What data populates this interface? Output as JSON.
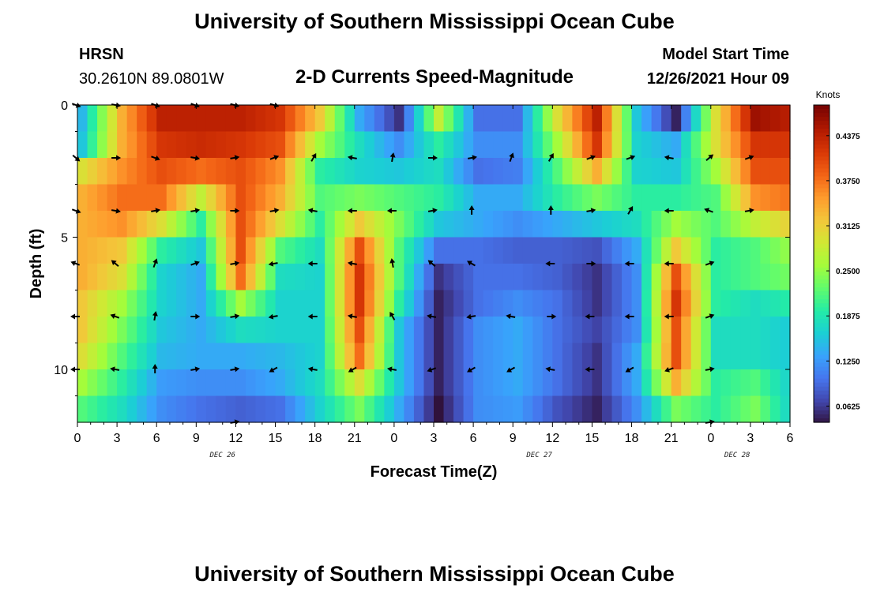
{
  "header": {
    "title": "University of Southern Mississippi Ocean Cube",
    "station": "HRSN",
    "coords": "30.2610N  89.0801W",
    "subtitle": "2-D Currents Speed-Magnitude",
    "model_label": "Model Start Time",
    "model_time": "12/26/2021 Hour 09",
    "footer_title": "University of Southern Mississippi Ocean Cube"
  },
  "colors": {
    "colormap": [
      "#30123b",
      "#4145ab",
      "#4675ed",
      "#39a2fc",
      "#1bcfd4",
      "#24eca6",
      "#61fc6c",
      "#a4fc3b",
      "#d1e834",
      "#f3c63a",
      "#fe9b2d",
      "#f36315",
      "#d93806",
      "#b11901",
      "#7a0402"
    ],
    "arrow": "#000000",
    "frame": "#000000"
  },
  "chart_data": {
    "type": "heatmap",
    "title": "2-D Currents Speed-Magnitude",
    "xlabel": "Forecast Time(Z)",
    "ylabel": "Depth (ft)",
    "x_range_hours": [
      0,
      54
    ],
    "y_range_ft": [
      0,
      12
    ],
    "x_tick_labels": [
      "0",
      "3",
      "6",
      "9",
      "12",
      "15",
      "18",
      "21",
      "0",
      "3",
      "6",
      "9",
      "12",
      "15",
      "18",
      "21",
      "0",
      "3",
      "6"
    ],
    "y_ticks": [
      0,
      5,
      10
    ],
    "day_labels": [
      {
        "label": "DEC 26",
        "hour": 11
      },
      {
        "label": "DEC 27",
        "hour": 35
      },
      {
        "label": "DEC 28",
        "hour": 50
      }
    ],
    "colorbar": {
      "unit": "Knots",
      "min": 0.04,
      "max": 0.48,
      "ticks": [
        0.0625,
        0.125,
        0.1875,
        0.25,
        0.3125,
        0.375,
        0.4375
      ],
      "tick_labels": [
        "0.0625",
        "0.1250",
        "0.1875",
        "0.2500",
        "0.3125",
        "0.3750",
        "0.4375"
      ]
    },
    "depth_rows_ft": [
      0.5,
      1.5,
      2.5,
      3.5,
      4.5,
      5.5,
      6.5,
      7.5,
      8.5,
      9.5,
      10.5,
      11.5
    ],
    "column_hours": [
      0,
      3,
      6,
      9,
      12,
      15,
      18,
      21,
      24,
      27,
      30,
      33,
      36,
      39,
      42,
      45,
      48,
      51,
      54
    ],
    "speed_knots": [
      [
        0.15,
        0.34,
        0.44,
        0.44,
        0.44,
        0.42,
        0.32,
        0.14,
        0.06,
        0.28,
        0.1,
        0.1,
        0.3,
        0.44,
        0.16,
        0.05,
        0.3,
        0.46,
        0.44
      ],
      [
        0.16,
        0.34,
        0.42,
        0.43,
        0.42,
        0.4,
        0.26,
        0.18,
        0.12,
        0.2,
        0.12,
        0.12,
        0.26,
        0.42,
        0.17,
        0.14,
        0.3,
        0.42,
        0.42
      ],
      [
        0.3,
        0.36,
        0.4,
        0.38,
        0.4,
        0.36,
        0.2,
        0.17,
        0.16,
        0.18,
        0.1,
        0.11,
        0.22,
        0.34,
        0.17,
        0.16,
        0.26,
        0.4,
        0.4
      ],
      [
        0.34,
        0.38,
        0.38,
        0.28,
        0.4,
        0.34,
        0.22,
        0.24,
        0.22,
        0.2,
        0.14,
        0.14,
        0.2,
        0.24,
        0.2,
        0.2,
        0.22,
        0.36,
        0.38
      ],
      [
        0.34,
        0.36,
        0.3,
        0.2,
        0.4,
        0.3,
        0.2,
        0.32,
        0.24,
        0.16,
        0.14,
        0.12,
        0.14,
        0.16,
        0.18,
        0.26,
        0.22,
        0.28,
        0.32
      ],
      [
        0.34,
        0.32,
        0.2,
        0.16,
        0.4,
        0.22,
        0.18,
        0.4,
        0.22,
        0.1,
        0.1,
        0.09,
        0.09,
        0.08,
        0.14,
        0.32,
        0.2,
        0.22,
        0.26
      ],
      [
        0.34,
        0.3,
        0.17,
        0.14,
        0.38,
        0.18,
        0.17,
        0.42,
        0.22,
        0.06,
        0.1,
        0.1,
        0.09,
        0.06,
        0.12,
        0.4,
        0.2,
        0.22,
        0.24
      ],
      [
        0.32,
        0.26,
        0.17,
        0.14,
        0.26,
        0.17,
        0.17,
        0.42,
        0.2,
        0.05,
        0.1,
        0.12,
        0.1,
        0.06,
        0.12,
        0.42,
        0.2,
        0.18,
        0.2
      ],
      [
        0.32,
        0.24,
        0.16,
        0.14,
        0.18,
        0.17,
        0.17,
        0.4,
        0.16,
        0.05,
        0.12,
        0.14,
        0.1,
        0.07,
        0.12,
        0.4,
        0.18,
        0.18,
        0.16
      ],
      [
        0.3,
        0.22,
        0.15,
        0.14,
        0.14,
        0.15,
        0.17,
        0.38,
        0.16,
        0.05,
        0.12,
        0.14,
        0.1,
        0.06,
        0.14,
        0.4,
        0.18,
        0.18,
        0.16
      ],
      [
        0.26,
        0.2,
        0.13,
        0.12,
        0.12,
        0.14,
        0.18,
        0.3,
        0.16,
        0.05,
        0.12,
        0.14,
        0.1,
        0.06,
        0.14,
        0.34,
        0.2,
        0.22,
        0.16
      ],
      [
        0.22,
        0.18,
        0.12,
        0.1,
        0.09,
        0.1,
        0.17,
        0.24,
        0.14,
        0.04,
        0.12,
        0.13,
        0.08,
        0.05,
        0.12,
        0.24,
        0.2,
        0.24,
        0.16
      ]
    ],
    "vector_depths_ft": [
      0,
      2,
      4,
      6,
      8,
      10,
      12
    ],
    "vector_hours": [
      0,
      3,
      6,
      9,
      12,
      15,
      18,
      21,
      24,
      27,
      30,
      33,
      36,
      39,
      42,
      45,
      48,
      51,
      54
    ],
    "vector_direction_deg": [
      [
        -20,
        -10,
        -20,
        -20,
        -15,
        -15,
        null,
        null,
        null,
        null,
        null,
        null,
        null,
        null,
        null,
        null,
        null,
        null,
        null
      ],
      [
        -40,
        0,
        -20,
        -10,
        10,
        20,
        60,
        170,
        80,
        0,
        10,
        70,
        60,
        20,
        20,
        170,
        40,
        20,
        null
      ],
      [
        -20,
        -10,
        10,
        10,
        0,
        10,
        170,
        180,
        180,
        10,
        90,
        null,
        90,
        10,
        60,
        180,
        160,
        10,
        null
      ],
      [
        160,
        140,
        70,
        20,
        10,
        190,
        180,
        170,
        100,
        140,
        150,
        null,
        180,
        0,
        180,
        180,
        20,
        null,
        null
      ],
      [
        180,
        160,
        80,
        0,
        10,
        190,
        180,
        170,
        120,
        170,
        190,
        170,
        0,
        180,
        180,
        180,
        20,
        null,
        null
      ],
      [
        180,
        170,
        90,
        10,
        10,
        210,
        170,
        210,
        170,
        200,
        210,
        210,
        170,
        180,
        210,
        200,
        10,
        null,
        null
      ],
      [
        null,
        null,
        null,
        null,
        10,
        null,
        null,
        null,
        null,
        null,
        null,
        null,
        null,
        null,
        null,
        null,
        10,
        null,
        null
      ]
    ]
  }
}
